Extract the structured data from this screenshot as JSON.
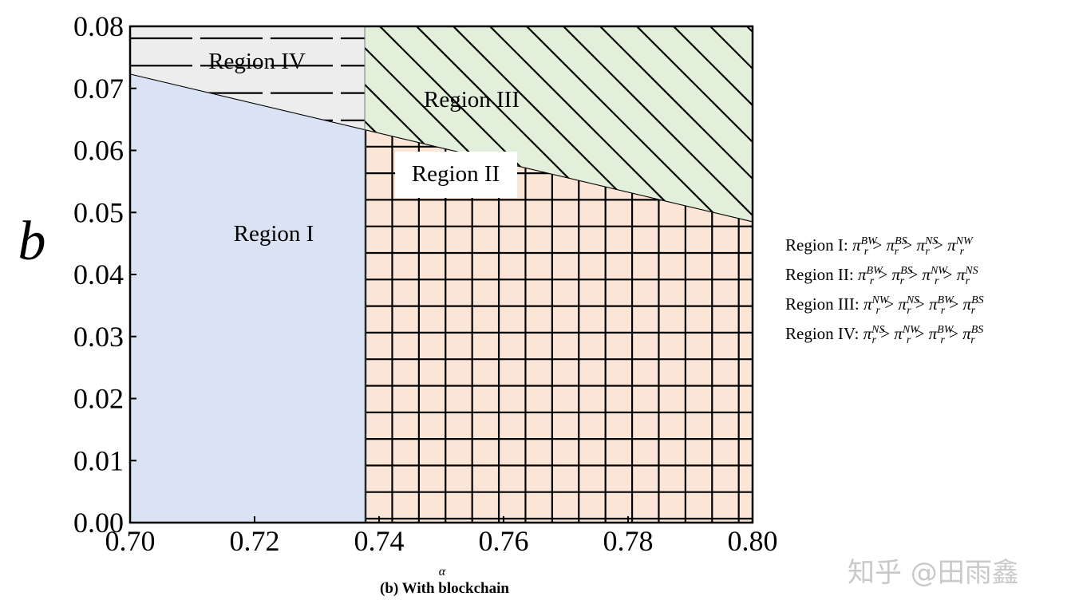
{
  "chart_data": {
    "type": "area",
    "subtitle": "(b) With blockchain",
    "xlabel": "α",
    "ylabel": "b",
    "xlim": [
      0.7,
      0.8
    ],
    "ylim": [
      0.0,
      0.08
    ],
    "x_ticks": [
      0.7,
      0.72,
      0.74,
      0.76,
      0.78,
      0.8
    ],
    "y_ticks": [
      0.0,
      0.01,
      0.02,
      0.03,
      0.04,
      0.05,
      0.06,
      0.07,
      0.08
    ],
    "x_tick_labels": [
      "0.70",
      "0.72",
      "0.74",
      "0.76",
      "0.78",
      "0.80"
    ],
    "y_tick_labels": [
      "0.00",
      "0.01",
      "0.02",
      "0.03",
      "0.04",
      "0.05",
      "0.06",
      "0.07",
      "0.08"
    ],
    "alpha_threshold": 0.7377,
    "boundary_line": {
      "x": [
        0.7,
        0.8
      ],
      "y": [
        0.0723,
        0.0485
      ]
    },
    "regions": [
      {
        "name": "Region I",
        "color": "#dae3f3",
        "hatch": "none",
        "description": "alpha < 0.7377, b below boundary"
      },
      {
        "name": "Region II",
        "color": "#fbe5d6",
        "hatch": "grid",
        "description": "alpha > 0.7377, b below boundary"
      },
      {
        "name": "Region III",
        "color": "#e2efda",
        "hatch": "diagonal",
        "description": "alpha > 0.7377, b above boundary"
      },
      {
        "name": "Region IV",
        "color": "#ededed",
        "hatch": "horizontal",
        "description": "alpha < 0.7377, b above boundary"
      }
    ],
    "legend": [
      {
        "region": "Region I:",
        "order": [
          "BW",
          "BS",
          "NS",
          "NW"
        ]
      },
      {
        "region": "Region II:",
        "order": [
          "BW",
          "BS",
          "NW",
          "NS"
        ]
      },
      {
        "region": "Region III:",
        "order": [
          "NW",
          "NS",
          "BW",
          "BS"
        ]
      },
      {
        "region": "Region IV:",
        "order": [
          "NS",
          "NW",
          "BW",
          "BS"
        ]
      }
    ],
    "legend_symbol": "π",
    "legend_subscript": "r",
    "legend_relation": ">",
    "legend_placement": "right"
  },
  "watermark": "知乎 @田雨鑫"
}
